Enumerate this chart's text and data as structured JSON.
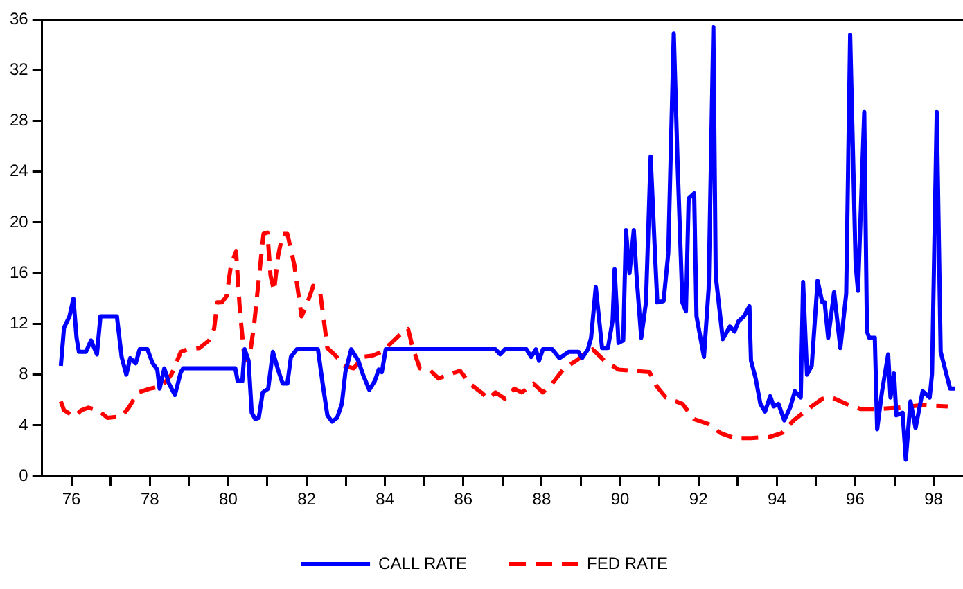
{
  "chart_data": {
    "type": "line",
    "xlim": [
      75.25,
      98.75
    ],
    "xticks": [
      76,
      {
        "value": 77,
        "label": null
      },
      78,
      {
        "value": 79,
        "label": null
      },
      80,
      {
        "value": 81,
        "label": null
      },
      82,
      {
        "value": 83,
        "label": null
      },
      84,
      {
        "value": 85,
        "label": null
      },
      86,
      {
        "value": 87,
        "label": null
      },
      88,
      {
        "value": 89,
        "label": null
      },
      90,
      {
        "value": 91,
        "label": null
      },
      92,
      {
        "value": 93,
        "label": null
      },
      94,
      {
        "value": 95,
        "label": null
      },
      96,
      {
        "value": 97,
        "label": null
      },
      98
    ],
    "ylim": [
      0,
      36
    ],
    "yticks": [
      0,
      4,
      8,
      12,
      16,
      20,
      24,
      28,
      32,
      36
    ],
    "grid": false,
    "legend": "bottom",
    "marker": "none",
    "series": [
      {
        "name": "CALL RATE",
        "color": "#0000ff",
        "line_style": "solid",
        "x": [
          75.73,
          75.81,
          75.95,
          76.05,
          76.13,
          76.19,
          76.37,
          76.5,
          76.65,
          76.74,
          77.16,
          77.28,
          77.4,
          77.5,
          77.64,
          77.74,
          77.94,
          78.07,
          78.19,
          78.25,
          78.37,
          78.49,
          78.64,
          78.79,
          78.85,
          79.27,
          80.18,
          80.24,
          80.36,
          80.42,
          80.52,
          80.6,
          80.69,
          80.78,
          80.88,
          81.02,
          81.14,
          81.27,
          81.39,
          81.51,
          81.6,
          81.75,
          82.29,
          82.41,
          82.53,
          82.65,
          82.78,
          82.9,
          82.99,
          83.14,
          83.32,
          83.44,
          83.6,
          83.74,
          83.84,
          83.92,
          84.02,
          86.82,
          86.94,
          87.06,
          87.61,
          87.73,
          87.85,
          87.93,
          88.03,
          88.27,
          88.45,
          88.69,
          88.94,
          89.03,
          89.18,
          89.26,
          89.38,
          89.54,
          89.69,
          89.81,
          89.86,
          89.96,
          90.08,
          90.15,
          90.24,
          90.35,
          90.42,
          90.54,
          90.66,
          90.78,
          90.9,
          90.95,
          91.11,
          91.23,
          91.37,
          91.47,
          91.59,
          91.68,
          91.75,
          91.89,
          91.95,
          92.14,
          92.26,
          92.38,
          92.44,
          92.62,
          92.8,
          92.92,
          93.02,
          93.16,
          93.3,
          93.34,
          93.46,
          93.58,
          93.7,
          93.83,
          93.92,
          94.04,
          94.19,
          94.35,
          94.46,
          94.61,
          94.67,
          94.77,
          94.89,
          95.04,
          95.16,
          95.22,
          95.31,
          95.46,
          95.62,
          95.77,
          95.87,
          96.01,
          96.07,
          96.23,
          96.3,
          96.36,
          96.5,
          96.56,
          96.68,
          96.84,
          96.9,
          96.99,
          97.05,
          97.21,
          97.29,
          97.41,
          97.54,
          97.72,
          97.9,
          97.96,
          98.08,
          98.18,
          98.42,
          98.54
        ],
        "values": [
          8.7,
          11.7,
          12.6,
          14.0,
          10.9,
          9.8,
          9.8,
          10.7,
          9.6,
          12.6,
          12.6,
          9.4,
          8.0,
          9.3,
          8.9,
          10.0,
          10.0,
          8.9,
          8.4,
          6.9,
          8.5,
          7.3,
          6.4,
          8.2,
          8.5,
          8.5,
          8.5,
          7.5,
          7.5,
          10.0,
          9.1,
          5.0,
          4.5,
          4.6,
          6.6,
          6.9,
          9.8,
          8.4,
          7.3,
          7.3,
          9.4,
          10.0,
          10.0,
          7.3,
          4.8,
          4.3,
          4.6,
          5.7,
          8.2,
          10.0,
          9.1,
          8.0,
          6.8,
          7.5,
          8.4,
          8.2,
          10.0,
          10.0,
          9.6,
          10.0,
          10.0,
          9.4,
          10.0,
          9.1,
          10.0,
          10.0,
          9.3,
          9.8,
          9.8,
          9.3,
          10.0,
          10.9,
          14.9,
          10.1,
          10.1,
          12.3,
          16.3,
          10.5,
          10.7,
          19.4,
          16.0,
          19.4,
          15.8,
          10.9,
          13.7,
          25.2,
          16.9,
          13.7,
          13.8,
          17.6,
          34.9,
          24.4,
          13.7,
          13.0,
          21.9,
          22.3,
          12.6,
          9.4,
          14.8,
          35.4,
          15.8,
          10.8,
          11.8,
          11.4,
          12.2,
          12.6,
          13.4,
          9.1,
          7.7,
          5.7,
          5.1,
          6.3,
          5.5,
          5.7,
          4.4,
          5.5,
          6.7,
          6.2,
          15.3,
          8.0,
          8.7,
          15.4,
          13.7,
          13.7,
          10.9,
          14.5,
          10.1,
          14.4,
          34.8,
          16.7,
          14.6,
          28.7,
          11.4,
          10.9,
          10.9,
          3.7,
          6.6,
          9.6,
          6.2,
          8.1,
          4.8,
          5.0,
          1.3,
          5.9,
          3.8,
          6.7,
          6.2,
          8.1,
          28.7,
          9.8,
          6.9,
          6.9
        ]
      },
      {
        "name": "FED RATE",
        "color": "#ff0000",
        "line_style": "dashed",
        "x": [
          75.73,
          75.81,
          76.07,
          76.25,
          76.43,
          76.68,
          76.92,
          77.28,
          77.46,
          77.7,
          78.0,
          78.31,
          78.55,
          78.79,
          78.97,
          79.27,
          79.51,
          79.64,
          79.72,
          79.84,
          79.96,
          80.06,
          80.15,
          80.2,
          80.3,
          80.42,
          80.54,
          80.66,
          80.78,
          80.9,
          81.0,
          81.08,
          81.17,
          81.27,
          81.39,
          81.51,
          81.69,
          81.87,
          81.99,
          82.17,
          82.35,
          82.47,
          82.53,
          82.71,
          82.96,
          83.2,
          83.44,
          83.68,
          83.92,
          84.16,
          84.47,
          84.59,
          84.71,
          84.89,
          85.13,
          85.37,
          85.61,
          85.92,
          86.16,
          86.46,
          86.64,
          86.82,
          87.06,
          87.3,
          87.49,
          87.79,
          88.03,
          88.27,
          88.57,
          88.88,
          89.12,
          89.3,
          89.6,
          89.96,
          90.32,
          90.75,
          90.93,
          91.17,
          91.59,
          91.89,
          92.26,
          92.56,
          92.92,
          93.34,
          93.83,
          94.13,
          94.43,
          94.8,
          95.16,
          95.4,
          95.77,
          96.13,
          96.61,
          97.09,
          97.7,
          98.36
        ],
        "values": [
          5.9,
          5.2,
          4.7,
          5.2,
          5.4,
          5.2,
          4.6,
          4.7,
          5.4,
          6.6,
          6.9,
          7.1,
          8.0,
          9.8,
          10.0,
          10.1,
          10.7,
          11.6,
          13.7,
          13.7,
          14.2,
          16.4,
          17.3,
          17.7,
          13.0,
          9.1,
          9.3,
          11.9,
          15.5,
          19.1,
          19.2,
          15.8,
          14.6,
          17.3,
          19.1,
          19.1,
          16.6,
          12.6,
          13.4,
          15.0,
          14.4,
          11.6,
          10.1,
          9.6,
          8.7,
          8.5,
          9.4,
          9.5,
          9.8,
          10.5,
          11.4,
          11.6,
          10.1,
          8.5,
          8.4,
          7.7,
          8.0,
          8.3,
          7.3,
          6.6,
          6.1,
          6.6,
          6.1,
          6.9,
          6.6,
          7.3,
          6.6,
          7.3,
          8.5,
          9.1,
          9.7,
          10.0,
          9.1,
          8.4,
          8.3,
          8.2,
          7.1,
          6.2,
          5.7,
          4.5,
          4.1,
          3.4,
          3.0,
          3.0,
          3.1,
          3.4,
          4.4,
          5.3,
          6.1,
          6.2,
          5.7,
          5.3,
          5.3,
          5.4,
          5.6,
          5.5
        ]
      }
    ]
  }
}
